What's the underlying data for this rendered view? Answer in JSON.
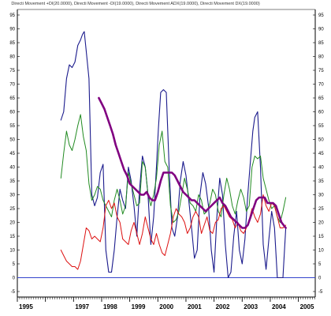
{
  "chart_data": {
    "type": "line",
    "title": "Directi Movement +DI(20.0000), Directi Movement -DI(19.0000), Directi Movement ADX(19.0000), Directi Movement DX(19.0000)",
    "grid": false,
    "legend": "none",
    "xlim": [
      1995.0,
      2005.6
    ],
    "ylim": [
      -7,
      97
    ],
    "yticks": [
      -5,
      0,
      5,
      10,
      15,
      20,
      25,
      30,
      35,
      40,
      45,
      50,
      55,
      60,
      65,
      70,
      75,
      80,
      85,
      90,
      95
    ],
    "ytick_labels": [
      "-5",
      "0",
      "5",
      "10",
      "15",
      "20",
      "25",
      "30",
      "35",
      "40",
      "45",
      "50",
      "55",
      "60",
      "65",
      "70",
      "75",
      "80",
      "85",
      "90",
      "95"
    ],
    "xticks": [
      1995,
      1997,
      1998,
      1999,
      2000,
      2001,
      2002,
      2003,
      2004,
      2005
    ],
    "xtick_labels": [
      "1995",
      "1997",
      "1998",
      "1999",
      "2000",
      "2001",
      "2002",
      "2003",
      "2004",
      "2005"
    ],
    "zero_line": {
      "value": 0,
      "color": "#3344cc"
    },
    "series": [
      {
        "color": "#1a1a8c",
        "width": 1.1,
        "x": [
          1996.55,
          1996.65,
          1996.75,
          1996.85,
          1996.95,
          1997.05,
          1997.15,
          1997.25,
          1997.32,
          1997.38,
          1997.45,
          1997.55,
          1997.65,
          1997.75,
          1997.85,
          1997.95,
          1998.05,
          1998.15,
          1998.25,
          1998.35,
          1998.45,
          1998.55,
          1998.65,
          1998.75,
          1998.85,
          1998.95,
          1999.05,
          1999.15,
          1999.25,
          1999.35,
          1999.45,
          1999.55,
          1999.65,
          1999.75,
          1999.85,
          1999.95,
          2000.02,
          2000.1,
          2000.2,
          2000.3,
          2000.4,
          2000.5,
          2000.6,
          2000.7,
          2000.8,
          2000.9,
          2001.0,
          2001.1,
          2001.2,
          2001.3,
          2001.4,
          2001.5,
          2001.6,
          2001.7,
          2001.8,
          2001.9,
          2002.0,
          2002.1,
          2002.2,
          2002.3,
          2002.4,
          2002.5,
          2002.6,
          2002.7,
          2002.8,
          2002.9,
          2003.0,
          2003.1,
          2003.2,
          2003.3,
          2003.38,
          2003.45,
          2003.55,
          2003.65,
          2003.75,
          2003.85,
          2003.95,
          2004.05,
          2004.15,
          2004.25,
          2004.35,
          2004.45,
          2004.55
        ],
        "values": [
          57,
          60,
          72,
          77,
          76,
          78,
          84,
          86,
          88,
          89,
          82,
          72,
          30,
          26,
          29,
          38,
          41,
          10,
          2,
          2,
          10,
          22,
          32,
          28,
          25,
          40,
          35,
          26,
          15,
          32,
          44,
          40,
          30,
          12,
          22,
          40,
          54,
          67,
          68,
          67,
          40,
          18,
          15,
          22,
          35,
          42,
          37,
          28,
          18,
          7,
          10,
          30,
          38,
          34,
          26,
          10,
          2,
          22,
          36,
          30,
          12,
          0,
          2,
          15,
          24,
          10,
          5,
          14,
          30,
          43,
          53,
          58,
          60,
          40,
          12,
          3,
          14,
          24,
          18,
          0,
          0,
          0,
          18
        ]
      },
      {
        "color": "#228b22",
        "width": 1.0,
        "x": [
          1996.55,
          1996.65,
          1996.75,
          1996.85,
          1996.95,
          1997.05,
          1997.15,
          1997.25,
          1997.35,
          1997.45,
          1997.55,
          1997.65,
          1997.75,
          1997.85,
          1997.95,
          1998.05,
          1998.15,
          1998.25,
          1998.35,
          1998.45,
          1998.55,
          1998.65,
          1998.75,
          1998.85,
          1998.95,
          1999.05,
          1999.15,
          1999.25,
          1999.35,
          1999.45,
          1999.55,
          1999.65,
          1999.75,
          1999.85,
          1999.95,
          2000.05,
          2000.15,
          2000.25,
          2000.35,
          2000.45,
          2000.55,
          2000.65,
          2000.75,
          2000.85,
          2000.95,
          2001.05,
          2001.15,
          2001.25,
          2001.35,
          2001.45,
          2001.55,
          2001.65,
          2001.75,
          2001.85,
          2001.95,
          2002.05,
          2002.15,
          2002.25,
          2002.35,
          2002.45,
          2002.55,
          2002.65,
          2002.75,
          2002.85,
          2002.95,
          2003.05,
          2003.15,
          2003.25,
          2003.35,
          2003.45,
          2003.55,
          2003.65,
          2003.75,
          2003.85,
          2003.95,
          2004.05,
          2004.15,
          2004.25,
          2004.35,
          2004.45,
          2004.55
        ],
        "values": [
          36,
          45,
          53,
          48,
          46,
          50,
          55,
          59,
          51,
          46,
          34,
          28,
          30,
          33,
          32,
          28,
          26,
          24,
          22,
          28,
          32,
          28,
          23,
          26,
          38,
          34,
          30,
          26,
          27,
          42,
          40,
          30,
          26,
          30,
          36,
          48,
          53,
          42,
          40,
          26,
          20,
          21,
          24,
          30,
          36,
          32,
          27,
          26,
          24,
          30,
          28,
          23,
          24,
          27,
          32,
          30,
          24,
          22,
          30,
          36,
          32,
          26,
          23,
          28,
          32,
          29,
          24,
          26,
          40,
          44,
          43,
          44,
          36,
          32,
          28,
          25,
          26,
          22,
          20,
          24,
          29
        ]
      },
      {
        "color": "#dd1111",
        "width": 1.0,
        "x": [
          1996.55,
          1996.65,
          1996.75,
          1996.85,
          1996.95,
          1997.05,
          1997.15,
          1997.25,
          1997.35,
          1997.45,
          1997.55,
          1997.65,
          1997.75,
          1997.85,
          1997.95,
          1998.05,
          1998.15,
          1998.25,
          1998.35,
          1998.45,
          1998.55,
          1998.65,
          1998.75,
          1998.85,
          1998.95,
          1999.05,
          1999.15,
          1999.25,
          1999.35,
          1999.45,
          1999.55,
          1999.65,
          1999.75,
          1999.85,
          1999.95,
          2000.05,
          2000.15,
          2000.25,
          2000.35,
          2000.45,
          2000.55,
          2000.65,
          2000.75,
          2000.85,
          2000.95,
          2001.05,
          2001.15,
          2001.25,
          2001.35,
          2001.45,
          2001.55,
          2001.65,
          2001.75,
          2001.85,
          2001.95,
          2002.05,
          2002.15,
          2002.25,
          2002.35,
          2002.45,
          2002.55,
          2002.65,
          2002.75,
          2002.85,
          2002.95,
          2003.05,
          2003.15,
          2003.25,
          2003.35,
          2003.45,
          2003.55,
          2003.65,
          2003.75,
          2003.85,
          2003.95,
          2004.05,
          2004.15,
          2004.25,
          2004.35,
          2004.45,
          2004.55
        ],
        "values": [
          10,
          8,
          6,
          5,
          4,
          4,
          3,
          6,
          12,
          18,
          17,
          14,
          15,
          14,
          13,
          18,
          26,
          28,
          25,
          27,
          22,
          20,
          14,
          13,
          12,
          17,
          20,
          16,
          12,
          16,
          22,
          18,
          14,
          12,
          16,
          12,
          9,
          8,
          12,
          16,
          22,
          25,
          23,
          22,
          20,
          16,
          18,
          22,
          24,
          22,
          16,
          19,
          22,
          17,
          16,
          20,
          21,
          25,
          26,
          24,
          22,
          21,
          18,
          20,
          17,
          16,
          18,
          21,
          25,
          22,
          20,
          23,
          30,
          26,
          24,
          27,
          26,
          22,
          18,
          18,
          19
        ]
      },
      {
        "color": "#800080",
        "width": 2.6,
        "x": [
          1997.9,
          1998.0,
          1998.1,
          1998.2,
          1998.3,
          1998.4,
          1998.5,
          1998.6,
          1998.7,
          1998.8,
          1998.9,
          1999.0,
          1999.1,
          1999.2,
          1999.3,
          1999.4,
          1999.5,
          1999.6,
          1999.7,
          1999.8,
          1999.9,
          2000.0,
          2000.1,
          2000.2,
          2000.3,
          2000.4,
          2000.5,
          2000.6,
          2000.7,
          2000.8,
          2000.9,
          2001.0,
          2001.1,
          2001.2,
          2001.3,
          2001.4,
          2001.5,
          2001.6,
          2001.7,
          2001.8,
          2001.9,
          2002.0,
          2002.1,
          2002.2,
          2002.3,
          2002.4,
          2002.5,
          2002.6,
          2002.7,
          2002.8,
          2002.9,
          2003.0,
          2003.1,
          2003.2,
          2003.3,
          2003.4,
          2003.5,
          2003.6,
          2003.7,
          2003.8,
          2003.9,
          2004.0,
          2004.1,
          2004.2,
          2004.3,
          2004.4,
          2004.55
        ],
        "values": [
          65,
          63,
          61,
          58,
          55,
          52,
          48,
          45,
          42,
          39,
          37,
          34,
          33,
          32,
          31,
          30,
          30,
          31,
          29,
          28,
          28,
          31,
          35,
          38,
          38,
          38,
          38,
          37,
          35,
          33,
          31,
          30,
          29,
          28,
          28,
          27,
          26,
          25,
          24,
          25,
          26,
          27,
          28,
          29,
          27,
          26,
          24,
          22,
          21,
          20,
          19,
          18,
          18,
          19,
          22,
          25,
          28,
          29,
          29,
          29,
          27,
          27,
          27,
          26,
          23,
          20,
          18
        ]
      }
    ]
  }
}
